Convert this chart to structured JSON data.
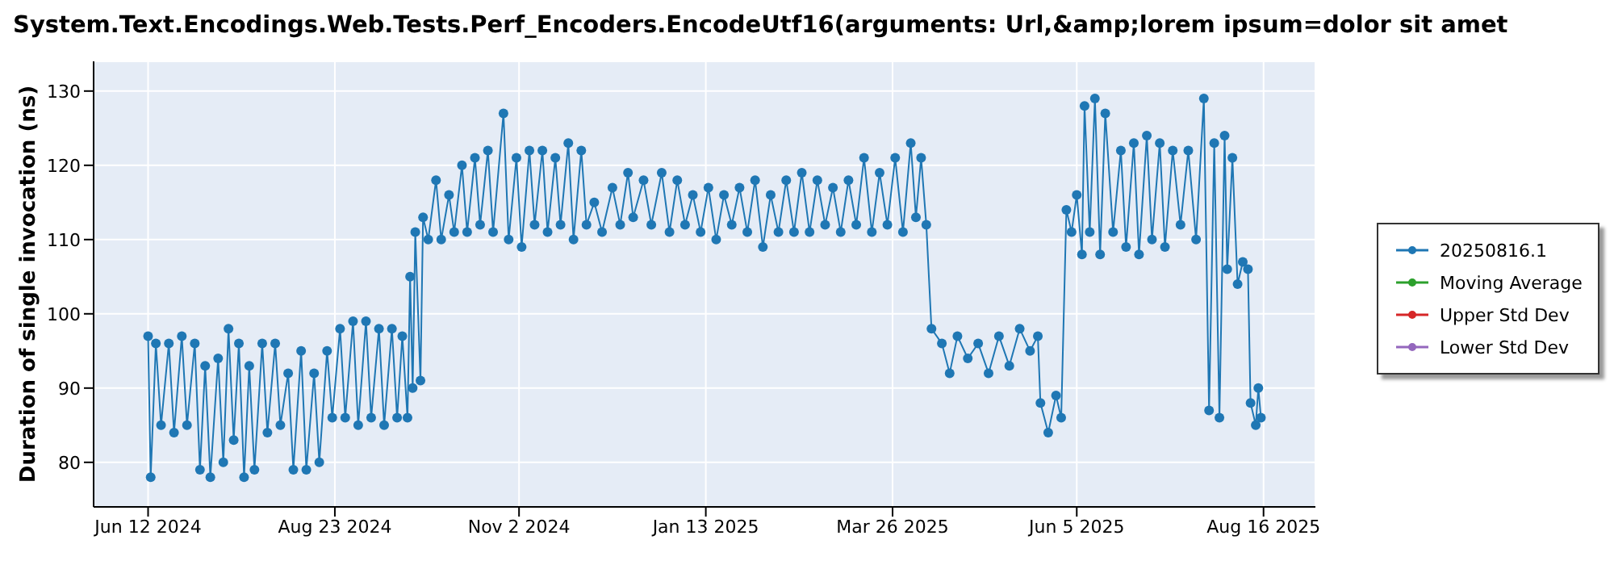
{
  "chart_data": {
    "type": "line",
    "title": "System.Text.Encodings.Web.Tests.Perf_Encoders.EncodeUtf16(arguments: Url,&amp;lorem ipsum=dolor sit amet",
    "ylabel": "Duration of single invocation (ns)",
    "xlim": [
      "2024-05-22",
      "2025-09-05"
    ],
    "xticks": [
      {
        "value": "2024-06-12",
        "label": "Jun 12 2024"
      },
      {
        "value": "2024-08-23",
        "label": "Aug 23 2024"
      },
      {
        "value": "2024-11-02",
        "label": "Nov 2 2024"
      },
      {
        "value": "2025-01-13",
        "label": "Jan 13 2025"
      },
      {
        "value": "2025-03-26",
        "label": "Mar 26 2025"
      },
      {
        "value": "2025-06-05",
        "label": "Jun 5 2025"
      },
      {
        "value": "2025-08-16",
        "label": "Aug 16 2025"
      }
    ],
    "ylim": [
      74,
      134
    ],
    "yticks": [
      80,
      90,
      100,
      110,
      120,
      130
    ],
    "grid": true,
    "legend": "right",
    "marker": "circle",
    "series": [
      {
        "name": "20250816.1",
        "color": "#1f77b4",
        "x": [
          "2024-06-12",
          "2024-06-13",
          "2024-06-15",
          "2024-06-17",
          "2024-06-20",
          "2024-06-22",
          "2024-06-25",
          "2024-06-27",
          "2024-06-30",
          "2024-07-02",
          "2024-07-04",
          "2024-07-06",
          "2024-07-09",
          "2024-07-11",
          "2024-07-13",
          "2024-07-15",
          "2024-07-17",
          "2024-07-19",
          "2024-07-21",
          "2024-07-23",
          "2024-07-26",
          "2024-07-28",
          "2024-07-31",
          "2024-08-02",
          "2024-08-05",
          "2024-08-07",
          "2024-08-10",
          "2024-08-12",
          "2024-08-15",
          "2024-08-17",
          "2024-08-20",
          "2024-08-22",
          "2024-08-25",
          "2024-08-27",
          "2024-08-30",
          "2024-09-01",
          "2024-09-04",
          "2024-09-06",
          "2024-09-09",
          "2024-09-11",
          "2024-09-14",
          "2024-09-16",
          "2024-09-18",
          "2024-09-20",
          "2024-09-21",
          "2024-09-22",
          "2024-09-23",
          "2024-09-25",
          "2024-09-26",
          "2024-09-28",
          "2024-10-01",
          "2024-10-03",
          "2024-10-06",
          "2024-10-08",
          "2024-10-11",
          "2024-10-13",
          "2024-10-16",
          "2024-10-18",
          "2024-10-21",
          "2024-10-23",
          "2024-10-27",
          "2024-10-29",
          "2024-11-01",
          "2024-11-03",
          "2024-11-06",
          "2024-11-08",
          "2024-11-11",
          "2024-11-13",
          "2024-11-16",
          "2024-11-18",
          "2024-11-21",
          "2024-11-23",
          "2024-11-26",
          "2024-11-28",
          "2024-12-01",
          "2024-12-04",
          "2024-12-08",
          "2024-12-11",
          "2024-12-14",
          "2024-12-16",
          "2024-12-20",
          "2024-12-23",
          "2024-12-27",
          "2024-12-30",
          "2025-01-02",
          "2025-01-05",
          "2025-01-08",
          "2025-01-11",
          "2025-01-14",
          "2025-01-17",
          "2025-01-20",
          "2025-01-23",
          "2025-01-26",
          "2025-01-29",
          "2025-02-01",
          "2025-02-04",
          "2025-02-07",
          "2025-02-10",
          "2025-02-13",
          "2025-02-16",
          "2025-02-19",
          "2025-02-22",
          "2025-02-25",
          "2025-02-28",
          "2025-03-03",
          "2025-03-06",
          "2025-03-09",
          "2025-03-12",
          "2025-03-15",
          "2025-03-18",
          "2025-03-21",
          "2025-03-24",
          "2025-03-27",
          "2025-03-30",
          "2025-04-02",
          "2025-04-04",
          "2025-04-06",
          "2025-04-08",
          "2025-04-10",
          "2025-04-14",
          "2025-04-17",
          "2025-04-20",
          "2025-04-24",
          "2025-04-28",
          "2025-05-02",
          "2025-05-06",
          "2025-05-10",
          "2025-05-14",
          "2025-05-18",
          "2025-05-21",
          "2025-05-22",
          "2025-05-25",
          "2025-05-28",
          "2025-05-30",
          "2025-06-01",
          "2025-06-03",
          "2025-06-05",
          "2025-06-07",
          "2025-06-08",
          "2025-06-10",
          "2025-06-12",
          "2025-06-14",
          "2025-06-16",
          "2025-06-19",
          "2025-06-22",
          "2025-06-24",
          "2025-06-27",
          "2025-06-29",
          "2025-07-02",
          "2025-07-04",
          "2025-07-07",
          "2025-07-09",
          "2025-07-12",
          "2025-07-15",
          "2025-07-18",
          "2025-07-21",
          "2025-07-24",
          "2025-07-26",
          "2025-07-28",
          "2025-07-30",
          "2025-08-01",
          "2025-08-02",
          "2025-08-04",
          "2025-08-06",
          "2025-08-08",
          "2025-08-10",
          "2025-08-11",
          "2025-08-13",
          "2025-08-14",
          "2025-08-15"
        ],
        "values": [
          97,
          78,
          96,
          85,
          96,
          84,
          97,
          85,
          96,
          79,
          93,
          78,
          94,
          80,
          98,
          83,
          96,
          78,
          93,
          79,
          96,
          84,
          96,
          85,
          92,
          79,
          95,
          79,
          92,
          80,
          95,
          86,
          98,
          86,
          99,
          85,
          99,
          86,
          98,
          85,
          98,
          86,
          97,
          86,
          105,
          90,
          111,
          91,
          113,
          110,
          118,
          110,
          116,
          111,
          120,
          111,
          121,
          112,
          122,
          111,
          127,
          110,
          121,
          109,
          122,
          112,
          122,
          111,
          121,
          112,
          123,
          110,
          122,
          112,
          115,
          111,
          117,
          112,
          119,
          113,
          118,
          112,
          119,
          111,
          118,
          112,
          116,
          111,
          117,
          110,
          116,
          112,
          117,
          111,
          118,
          109,
          116,
          111,
          118,
          111,
          119,
          111,
          118,
          112,
          117,
          111,
          118,
          112,
          121,
          111,
          119,
          112,
          121,
          111,
          123,
          113,
          121,
          112,
          98,
          96,
          92,
          97,
          94,
          96,
          92,
          97,
          93,
          98,
          95,
          97,
          88,
          84,
          89,
          86,
          114,
          111,
          116,
          108,
          128,
          111,
          129,
          108,
          127,
          111,
          122,
          109,
          123,
          108,
          124,
          110,
          123,
          109,
          122,
          112,
          122,
          110,
          129,
          87,
          123,
          86,
          124,
          106,
          121,
          104,
          107,
          106,
          88,
          85,
          90,
          86
        ]
      },
      {
        "name": "Moving Average",
        "color": "#2ca02c"
      },
      {
        "name": "Upper Std Dev",
        "color": "#d62728"
      },
      {
        "name": "Lower Std Dev",
        "color": "#9467bd"
      }
    ]
  }
}
